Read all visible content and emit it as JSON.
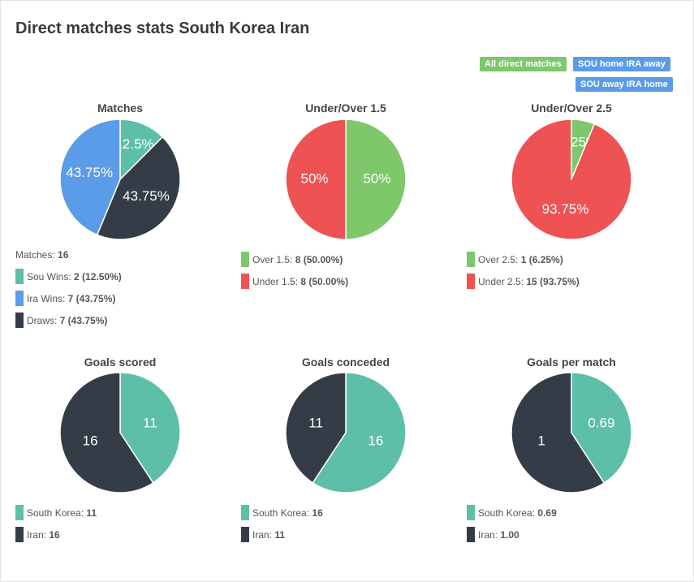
{
  "page": {
    "title": "Direct matches stats South Korea Iran"
  },
  "filters": [
    {
      "label": "All direct matches",
      "color": "#7ec76b"
    },
    {
      "label": "SOU home IRA away",
      "color": "#5b9ce8"
    },
    {
      "label": "SOU away IRA home",
      "color": "#5b9ce8"
    }
  ],
  "colors": {
    "teal": "#5dbfa8",
    "blue": "#5b9ce8",
    "dark": "#343d47",
    "green": "#7ec76b",
    "red": "#ee5253"
  },
  "charts": [
    {
      "title": "Matches",
      "type": "pie",
      "slices": [
        {
          "name": "Sou Wins",
          "value": 2,
          "label": "12.5%",
          "color": "#5dbfa8"
        },
        {
          "name": "Draws",
          "value": 7,
          "label": "43.75%",
          "color": "#343d47"
        },
        {
          "name": "Ira Wins",
          "value": 7,
          "label": "43.75%",
          "color": "#5b9ce8"
        }
      ],
      "legend_header": {
        "label": "Matches: ",
        "value": "16"
      },
      "legend": [
        {
          "label": "Sou Wins: ",
          "value": "2 (12.50%)",
          "color": "#5dbfa8"
        },
        {
          "label": "Ira Wins: ",
          "value": "7 (43.75%)",
          "color": "#5b9ce8"
        },
        {
          "label": "Draws: ",
          "value": "7 (43.75%)",
          "color": "#343d47"
        }
      ]
    },
    {
      "title": "Under/Over 1.5",
      "type": "pie",
      "slices": [
        {
          "name": "Over 1.5",
          "value": 8,
          "label": "50%",
          "color": "#7ec76b"
        },
        {
          "name": "Under 1.5",
          "value": 8,
          "label": "50%",
          "color": "#ee5253"
        }
      ],
      "legend": [
        {
          "label": "Over 1.5: ",
          "value": "8 (50.00%)",
          "color": "#7ec76b"
        },
        {
          "label": "Under 1.5: ",
          "value": "8 (50.00%)",
          "color": "#ee5253"
        }
      ]
    },
    {
      "title": "Under/Over 2.5",
      "type": "pie",
      "slices": [
        {
          "name": "Over 2.5",
          "value": 1,
          "label": "6.25%",
          "color": "#7ec76b"
        },
        {
          "name": "Under 2.5",
          "value": 15,
          "label": "93.75%",
          "color": "#ee5253"
        }
      ],
      "legend": [
        {
          "label": "Over 2.5: ",
          "value": "1 (6.25%)",
          "color": "#7ec76b"
        },
        {
          "label": "Under 2.5: ",
          "value": "15 (93.75%)",
          "color": "#ee5253"
        }
      ]
    },
    {
      "title": "Goals scored",
      "type": "pie",
      "slices": [
        {
          "name": "South Korea",
          "value": 11,
          "label": "11",
          "color": "#5dbfa8"
        },
        {
          "name": "Iran",
          "value": 16,
          "label": "16",
          "color": "#343d47"
        }
      ],
      "legend": [
        {
          "label": "South Korea: ",
          "value": "11",
          "color": "#5dbfa8"
        },
        {
          "label": "Iran: ",
          "value": "16",
          "color": "#343d47"
        }
      ]
    },
    {
      "title": "Goals conceded",
      "type": "pie",
      "slices": [
        {
          "name": "South Korea",
          "value": 16,
          "label": "16",
          "color": "#5dbfa8"
        },
        {
          "name": "Iran",
          "value": 11,
          "label": "11",
          "color": "#343d47"
        }
      ],
      "legend": [
        {
          "label": "South Korea: ",
          "value": "16",
          "color": "#5dbfa8"
        },
        {
          "label": "Iran: ",
          "value": "11",
          "color": "#343d47"
        }
      ]
    },
    {
      "title": "Goals per match",
      "type": "pie",
      "slices": [
        {
          "name": "South Korea",
          "value": 0.69,
          "label": "0.69",
          "color": "#5dbfa8"
        },
        {
          "name": "Iran",
          "value": 1.0,
          "label": "1",
          "color": "#343d47"
        }
      ],
      "legend": [
        {
          "label": "South Korea: ",
          "value": "0.69",
          "color": "#5dbfa8"
        },
        {
          "label": "Iran: ",
          "value": "1.00",
          "color": "#343d47"
        }
      ]
    }
  ]
}
